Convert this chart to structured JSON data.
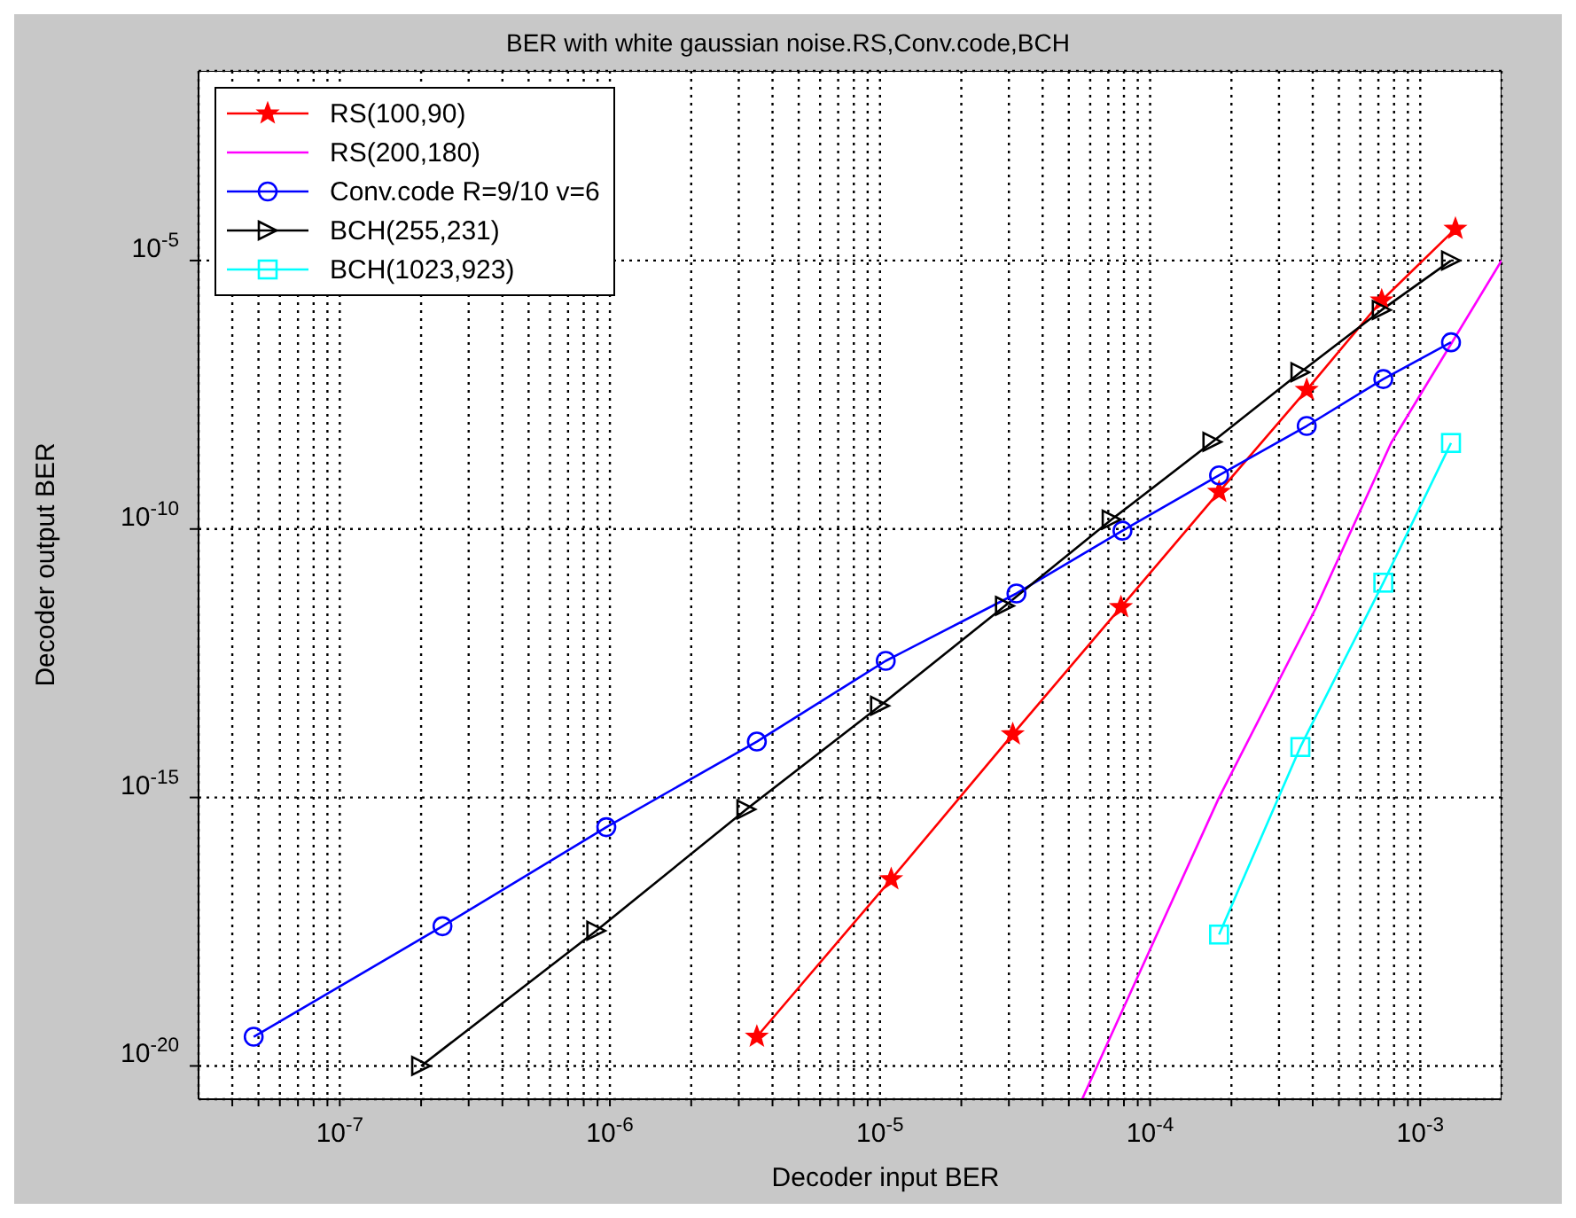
{
  "chart_data": {
    "type": "line",
    "title": "BER with white gaussian noise.RS,Conv.code,BCH",
    "xlabel": "Decoder input BER",
    "ylabel": "Decoder output BER",
    "log": "xy",
    "grid": true,
    "legend": "top left",
    "xlim": [
      3e-08,
      0.002
    ],
    "ylim": [
      2.4e-21,
      0.034
    ],
    "xticks": [
      {
        "value": 4e-08,
        "label": null
      },
      {
        "value": 5e-08,
        "label": null
      },
      {
        "value": 6e-08,
        "label": null
      },
      {
        "value": 7e-08,
        "label": null
      },
      {
        "value": 8e-08,
        "label": null
      },
      {
        "value": 9e-08,
        "label": null
      },
      {
        "value": 1e-07,
        "label": "10$^{-7}$"
      },
      {
        "value": 2e-07,
        "label": null
      },
      {
        "value": 3e-07,
        "label": null
      },
      {
        "value": 4e-07,
        "label": null
      },
      {
        "value": 5e-07,
        "label": null
      },
      {
        "value": 6e-07,
        "label": null
      },
      {
        "value": 7e-07,
        "label": null
      },
      {
        "value": 8e-07,
        "label": null
      },
      {
        "value": 9e-07,
        "label": null
      },
      {
        "value": 1e-06,
        "label": "10$^{-6}$"
      },
      {
        "value": 2e-06,
        "label": null
      },
      {
        "value": 3e-06,
        "label": null
      },
      {
        "value": 4e-06,
        "label": null
      },
      {
        "value": 5e-06,
        "label": null
      },
      {
        "value": 6e-06,
        "label": null
      },
      {
        "value": 7e-06,
        "label": null
      },
      {
        "value": 8e-06,
        "label": null
      },
      {
        "value": 9e-06,
        "label": null
      },
      {
        "value": 1e-05,
        "label": "10$^{-5}$"
      },
      {
        "value": 2e-05,
        "label": null
      },
      {
        "value": 3e-05,
        "label": null
      },
      {
        "value": 4e-05,
        "label": null
      },
      {
        "value": 5e-05,
        "label": null
      },
      {
        "value": 6e-05,
        "label": null
      },
      {
        "value": 7e-05,
        "label": null
      },
      {
        "value": 8e-05,
        "label": null
      },
      {
        "value": 9e-05,
        "label": null
      },
      {
        "value": 0.0001,
        "label": "10$^{-4}$"
      },
      {
        "value": 0.0002,
        "label": null
      },
      {
        "value": 0.0003,
        "label": null
      },
      {
        "value": 0.0004,
        "label": null
      },
      {
        "value": 0.0005,
        "label": null
      },
      {
        "value": 0.0006,
        "label": null
      },
      {
        "value": 0.0007,
        "label": null
      },
      {
        "value": 0.0008,
        "label": null
      },
      {
        "value": 0.0009,
        "label": null
      },
      {
        "value": 0.001,
        "label": "10$^{-3}$"
      }
    ],
    "yticks": [
      {
        "value": 1e-20,
        "label": "10$^{-20}$"
      },
      {
        "value": 1e-15,
        "label": "10$^{-15}$"
      },
      {
        "value": 1e-10,
        "label": "10$^{-10}$"
      },
      {
        "value": 1e-05,
        "label": "10$^{-5}$"
      }
    ],
    "series": [
      {
        "name": "RS(100,90)",
        "color": "#ff0000",
        "marker": "star",
        "x": [
          3.5e-06,
          1.1e-05,
          3.1e-05,
          7.8e-05,
          0.00018,
          0.00038,
          0.00072,
          0.00135
        ],
        "values": [
          3.5e-20,
          3e-17,
          1.5e-14,
          3.5e-12,
          4.9e-10,
          3.9e-08,
          1.8e-06,
          3.9e-05
        ]
      },
      {
        "name": "RS(200,180)",
        "color": "#ff00ff",
        "marker": "none",
        "x": [
          5.6e-05,
          0.00018,
          0.00041,
          0.00078,
          0.002
        ],
        "values": [
          2.4e-21,
          1e-15,
          3.3e-12,
          4e-09,
          1e-05
        ]
      },
      {
        "name": "Conv.code R=9/10 v=6",
        "color": "#0000ff",
        "marker": "circle",
        "x": [
          4.8e-08,
          2.4e-07,
          9.7e-07,
          3.5e-06,
          1.05e-05,
          3.2e-05,
          7.9e-05,
          0.00018,
          0.00038,
          0.00073,
          0.0013
        ],
        "values": [
          3.5e-20,
          4e-18,
          2.8e-16,
          1.1e-14,
          3.5e-13,
          6.3e-12,
          9.3e-11,
          1e-09,
          8.3e-09,
          6.2e-08,
          3e-07
        ]
      },
      {
        "name": "BCH(255,231)",
        "color": "#000000",
        "marker": "triangle",
        "x": [
          2e-07,
          8.9e-07,
          3.2e-06,
          1e-05,
          2.9e-05,
          7.2e-05,
          0.00017,
          0.00036,
          0.00072,
          0.0013
        ],
        "values": [
          1e-20,
          3.3e-18,
          6e-16,
          5.1e-14,
          3.7e-12,
          1.5e-10,
          4.2e-09,
          8.3e-08,
          1.2e-06,
          1e-05
        ]
      },
      {
        "name": "BCH(1023,923)",
        "color": "#00ffff",
        "marker": "square",
        "x": [
          0.00018,
          0.00036,
          0.00073,
          0.0013
        ],
        "values": [
          2.8e-18,
          8.7e-15,
          1e-11,
          4e-09
        ]
      }
    ]
  }
}
